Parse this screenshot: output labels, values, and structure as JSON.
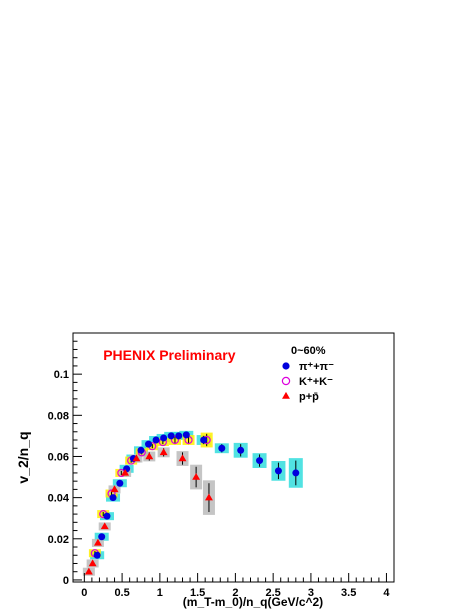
{
  "chart_data": {
    "type": "scatter",
    "title": "",
    "annotation": "PHENIX Preliminary",
    "annotation_color": "#ff0000",
    "xlabel": "(m_T-m_0)/n_q(GeV/c^2)",
    "ylabel": "v_2/n_q",
    "xlim": [
      -0.15,
      4.1
    ],
    "ylim": [
      -0.001,
      0.12
    ],
    "x_ticks": [
      0,
      0.5,
      1,
      1.5,
      2,
      2.5,
      3,
      3.5,
      4
    ],
    "x_tick_labels": [
      "0",
      "0.5",
      "1",
      "1.5",
      "2",
      "2.5",
      "3",
      "3.5",
      "4"
    ],
    "y_ticks": [
      0,
      0.02,
      0.04,
      0.06,
      0.08,
      0.1
    ],
    "y_tick_labels": [
      "0",
      "0.02",
      "0.04",
      "0.06",
      "0.08",
      "0.1"
    ],
    "grid": false,
    "legend_placement": "top-right",
    "legend_title": "0~60%",
    "series": [
      {
        "name": "π⁺+π⁻",
        "marker": "filled-circle",
        "color": "#0000dd",
        "syst_color": "#33dddd",
        "x": [
          0.17,
          0.23,
          0.3,
          0.38,
          0.47,
          0.56,
          0.65,
          0.75,
          0.85,
          0.95,
          1.05,
          1.15,
          1.25,
          1.35,
          1.58,
          1.82,
          2.07,
          2.32,
          2.57,
          2.8
        ],
        "y": [
          0.012,
          0.021,
          0.031,
          0.04,
          0.047,
          0.054,
          0.059,
          0.063,
          0.066,
          0.068,
          0.069,
          0.07,
          0.07,
          0.0705,
          0.068,
          0.064,
          0.063,
          0.058,
          0.053,
          0.052
        ],
        "err": [
          0.001,
          0.001,
          0.001,
          0.001,
          0.001,
          0.001,
          0.001,
          0.001,
          0.001,
          0.001,
          0.001,
          0.001,
          0.001,
          0.001,
          0.002,
          0.002,
          0.003,
          0.003,
          0.004,
          0.006
        ]
      },
      {
        "name": "K⁺+K⁻",
        "marker": "open-circle",
        "color": "#dd00dd",
        "syst_color": "#ffee00",
        "x": [
          0.14,
          0.25,
          0.36,
          0.49,
          0.62,
          0.76,
          0.9,
          1.04,
          1.2,
          1.38,
          1.62
        ],
        "y": [
          0.013,
          0.032,
          0.042,
          0.052,
          0.058,
          0.062,
          0.065,
          0.067,
          0.068,
          0.068,
          0.068
        ],
        "err": [
          0.001,
          0.001,
          0.001,
          0.001,
          0.001,
          0.001,
          0.001,
          0.001,
          0.002,
          0.002,
          0.003
        ]
      },
      {
        "name": "p+p̄",
        "marker": "filled-triangle",
        "color": "#ff0000",
        "syst_color": "#bbbbbb",
        "x": [
          0.06,
          0.11,
          0.18,
          0.27,
          0.4,
          0.54,
          0.69,
          0.86,
          1.05,
          1.3,
          1.48,
          1.65
        ],
        "y": [
          0.004,
          0.008,
          0.018,
          0.026,
          0.044,
          0.052,
          0.059,
          0.06,
          0.062,
          0.059,
          0.05,
          0.04
        ],
        "err": [
          0.001,
          0.001,
          0.001,
          0.001,
          0.001,
          0.001,
          0.001,
          0.002,
          0.002,
          0.003,
          0.005,
          0.007
        ]
      }
    ]
  }
}
